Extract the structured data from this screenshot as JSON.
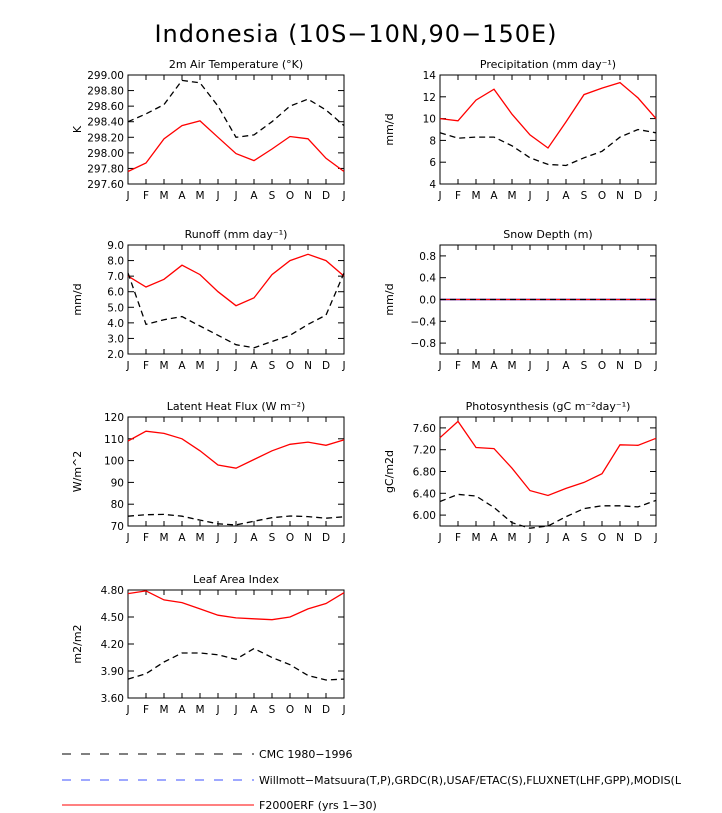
{
  "figure": {
    "title": "Indonesia (10S−10N,90−150E)",
    "months": [
      "J",
      "F",
      "M",
      "A",
      "M",
      "J",
      "J",
      "A",
      "S",
      "O",
      "N",
      "D",
      "J"
    ],
    "colors": {
      "model": "#ff0000",
      "obs_blue": "#3c50ff",
      "obs": "#000000",
      "zero_line": "#0000ff"
    }
  },
  "legend": [
    {
      "label": "CMC 1980−1996",
      "color": "#000000",
      "style": "dashed"
    },
    {
      "label": "Willmott−Matsuura(T,P),GRDC(R),USAF/ETAC(S),FLUXNET(LHF,GPP),MODIS(L",
      "color": "#3c50ff",
      "style": "dashed"
    },
    {
      "label": "F2000ERF (yrs 1−30)",
      "color": "#ff0000",
      "style": "solid"
    }
  ],
  "chart_data": [
    {
      "type": "line",
      "title": "2m Air Temperature (°K)",
      "ylabel": "K",
      "ylim": [
        297.6,
        299.0
      ],
      "yticks": [
        "297.60",
        "297.80",
        "298.00",
        "298.20",
        "298.40",
        "298.60",
        "298.80",
        "299.00"
      ],
      "series": [
        {
          "name": "F2000ERF (yrs 1−30)",
          "values": [
            297.76,
            297.87,
            298.18,
            298.35,
            298.41,
            298.2,
            297.99,
            297.9,
            298.05,
            298.21,
            298.18,
            297.93,
            297.76
          ]
        },
        {
          "name": "CMC 1980−1996",
          "values": [
            298.4,
            298.5,
            298.62,
            298.93,
            298.9,
            298.6,
            298.2,
            298.23,
            298.4,
            298.6,
            298.69,
            298.55,
            298.35
          ]
        }
      ]
    },
    {
      "type": "line",
      "title": "Precipitation (mm day⁻¹)",
      "ylabel": "mm/d",
      "ylim": [
        4,
        14
      ],
      "yticks": [
        "4",
        "6",
        "8",
        "10",
        "12",
        "14"
      ],
      "series": [
        {
          "name": "F2000ERF (yrs 1−30)",
          "values": [
            10.0,
            9.8,
            11.7,
            12.7,
            10.4,
            8.5,
            7.3,
            9.7,
            12.2,
            12.8,
            13.3,
            11.9,
            10.0
          ]
        },
        {
          "name": "Willmott−Matsuura",
          "values": [
            8.7,
            8.2,
            8.3,
            8.3,
            7.5,
            6.4,
            5.8,
            5.7,
            6.4,
            7.0,
            8.3,
            9.0,
            8.7
          ]
        }
      ]
    },
    {
      "type": "line",
      "title": "Runoff (mm day⁻¹)",
      "ylabel": "mm/d",
      "ylim": [
        2.0,
        9.0
      ],
      "yticks": [
        "2.0",
        "3.0",
        "4.0",
        "5.0",
        "6.0",
        "7.0",
        "8.0",
        "9.0"
      ],
      "series": [
        {
          "name": "F2000ERF (yrs 1−30)",
          "values": [
            7.0,
            6.3,
            6.8,
            7.7,
            7.1,
            6.0,
            5.1,
            5.6,
            7.1,
            8.0,
            8.4,
            8.0,
            7.0
          ]
        },
        {
          "name": "GRDC",
          "values": [
            7.2,
            3.9,
            4.2,
            4.4,
            3.8,
            3.2,
            2.6,
            2.4,
            2.8,
            3.2,
            3.9,
            4.5,
            7.2
          ]
        }
      ]
    },
    {
      "type": "line",
      "title": "Snow Depth (m)",
      "ylabel": "mm/d",
      "ylim": [
        -1.0,
        1.0
      ],
      "yticks": [
        "−0.8",
        "−0.4",
        "0.0",
        "0.4",
        "0.8"
      ],
      "series": [
        {
          "name": "F2000ERF (yrs 1−30)",
          "values": [
            0,
            0,
            0,
            0,
            0,
            0,
            0,
            0,
            0,
            0,
            0,
            0,
            0
          ]
        },
        {
          "name": "USAF/ETAC",
          "values": [
            0,
            0,
            0,
            0,
            0,
            0,
            0,
            0,
            0,
            0,
            0,
            0,
            0
          ]
        }
      ]
    },
    {
      "type": "line",
      "title": "Latent Heat Flux (W m⁻²)",
      "ylabel": "W/m^2",
      "ylim": [
        70,
        120
      ],
      "yticks": [
        "70",
        "80",
        "90",
        "100",
        "110",
        "120"
      ],
      "series": [
        {
          "name": "F2000ERF (yrs 1−30)",
          "values": [
            109,
            113.5,
            112.5,
            110,
            104.5,
            98,
            96.5,
            100.5,
            104.5,
            107.5,
            108.5,
            107,
            109.5
          ]
        },
        {
          "name": "FLUXNET",
          "values": [
            74.5,
            75.2,
            75.3,
            74.5,
            72.7,
            71.0,
            70.5,
            72.2,
            73.8,
            74.6,
            74.3,
            73.6,
            74.2
          ]
        }
      ]
    },
    {
      "type": "line",
      "title": "Photosynthesis (gC m⁻²day⁻¹)",
      "ylabel": "gC/m2d",
      "ylim": [
        5.8,
        7.8
      ],
      "yticks": [
        "6.00",
        "6.40",
        "6.80",
        "7.20",
        "7.60"
      ],
      "series": [
        {
          "name": "F2000ERF (yrs 1−30)",
          "values": [
            7.42,
            7.72,
            7.24,
            7.22,
            6.86,
            6.45,
            6.36,
            6.49,
            6.6,
            6.76,
            7.29,
            7.28,
            7.41
          ]
        },
        {
          "name": "FLUXNET",
          "values": [
            6.25,
            6.38,
            6.35,
            6.14,
            5.86,
            5.76,
            5.8,
            5.97,
            6.12,
            6.17,
            6.17,
            6.15,
            6.27
          ]
        }
      ]
    },
    {
      "type": "line",
      "title": "Leaf Area Index",
      "ylabel": "m2/m2",
      "ylim": [
        3.6,
        4.8
      ],
      "yticks": [
        "3.60",
        "3.90",
        "4.20",
        "4.50",
        "4.80"
      ],
      "series": [
        {
          "name": "F2000ERF (yrs 1−30)",
          "values": [
            4.76,
            4.79,
            4.69,
            4.66,
            4.59,
            4.52,
            4.49,
            4.48,
            4.47,
            4.5,
            4.59,
            4.65,
            4.77
          ]
        },
        {
          "name": "MODIS",
          "values": [
            3.81,
            3.87,
            4.0,
            4.1,
            4.1,
            4.08,
            4.03,
            4.15,
            4.05,
            3.97,
            3.85,
            3.8,
            3.81
          ]
        }
      ]
    }
  ]
}
